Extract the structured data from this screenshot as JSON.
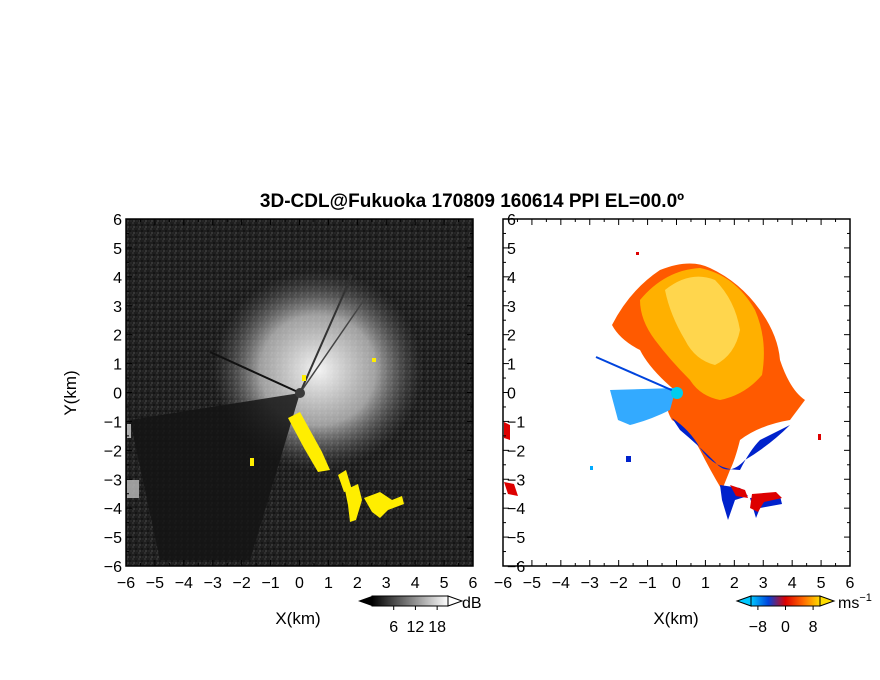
{
  "title": "3D-CDL@Fukuoka 170809 160614 PPI EL=00.0º",
  "chart_data": [
    {
      "type": "heatmap",
      "panel": "left",
      "quantity": "reflectivity",
      "xlabel": "X(km)",
      "ylabel": "Y(km)",
      "xlim": [
        -6,
        6
      ],
      "ylim": [
        -6,
        6
      ],
      "xticks": [
        -6,
        -5,
        -4,
        -3,
        -2,
        -1,
        0,
        1,
        2,
        3,
        4,
        5,
        6
      ],
      "yticks": [
        -6,
        -5,
        -4,
        -3,
        -2,
        -1,
        0,
        1,
        2,
        3,
        4,
        5,
        6
      ],
      "colorbar": {
        "ticks": [
          6,
          12,
          18
        ],
        "unit": "dB",
        "colors": [
          "#000000",
          "#ffffff"
        ]
      },
      "highlight_color": "#ffee00"
    },
    {
      "type": "heatmap",
      "panel": "right",
      "quantity": "doppler velocity",
      "xlabel": "X(km)",
      "xlim": [
        -6,
        6
      ],
      "ylim": [
        -6,
        6
      ],
      "xticks": [
        -6,
        -5,
        -4,
        -3,
        -2,
        -1,
        0,
        1,
        2,
        3,
        4,
        5,
        6
      ],
      "yticks": [
        -6,
        -5,
        -4,
        -3,
        -2,
        -1,
        0,
        1,
        2,
        3,
        4,
        5,
        6
      ],
      "colorbar": {
        "ticks": [
          -8,
          0,
          8
        ],
        "unit": "ms",
        "unit_exponent": "−1",
        "colors": [
          "#00c8ff",
          "#0044dd",
          "#dd0000",
          "#ff6600",
          "#ffdd00"
        ]
      }
    }
  ]
}
